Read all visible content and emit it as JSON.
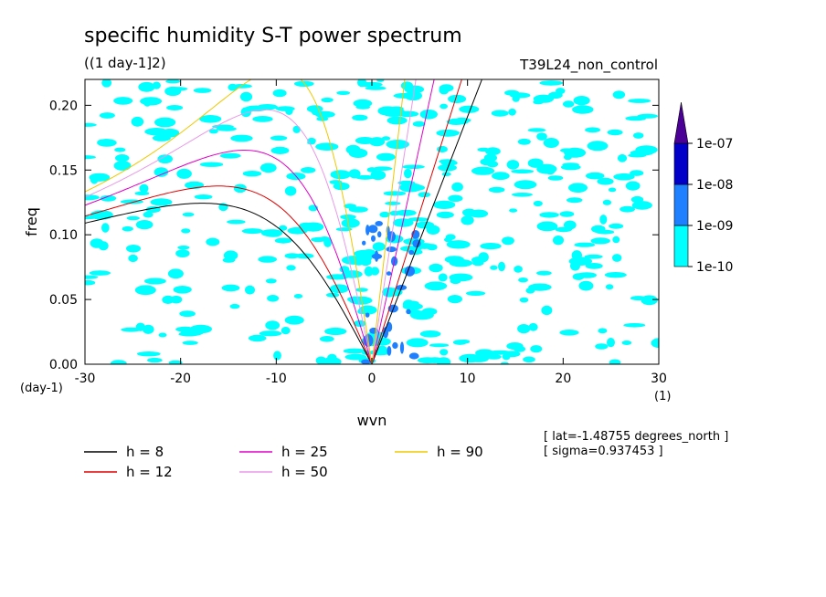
{
  "chart_data": {
    "type": "heatmap",
    "title": "specific humidity S-T power spectrum",
    "subtitle": "((1 day-1]2)",
    "run_label": "T39L24_non_control",
    "xlabel": "wvn",
    "ylabel": "freq",
    "x_unit_label": "(1)",
    "y_unit_label": "(day-1)",
    "xlim": [
      -30,
      30
    ],
    "ylim": [
      0,
      0.22
    ],
    "x_ticks": [
      -30,
      -20,
      -10,
      0,
      10,
      20,
      30
    ],
    "x_tick_labels": [
      "-30",
      "-20",
      "-10",
      "0",
      "10",
      "20",
      "30"
    ],
    "y_ticks": [
      0,
      0.05,
      0.1,
      0.15,
      0.2
    ],
    "y_tick_labels": [
      "0.00",
      "0.05",
      "0.10",
      "0.15",
      "0.20"
    ],
    "colorbar": {
      "levels": [
        "1e-10",
        "1e-09",
        "1e-08",
        "1e-07"
      ],
      "colors": [
        "#00ffff",
        "#1e7fff",
        "#0000c8",
        "#4b0096"
      ]
    },
    "info": [
      "[ lat=-1.48755 degrees_north ]",
      "[ sigma=0.937453 ]"
    ],
    "series": [
      {
        "name": "h =  8",
        "depth": 8,
        "color": "#000000"
      },
      {
        "name": "h = 12",
        "depth": 12,
        "color": "#e00000"
      },
      {
        "name": "h = 25",
        "depth": 25,
        "color": "#e000c8"
      },
      {
        "name": "h = 50",
        "depth": 50,
        "color": "#e89ae8"
      },
      {
        "name": "h = 90",
        "depth": 90,
        "color": "#f0c800"
      }
    ]
  }
}
